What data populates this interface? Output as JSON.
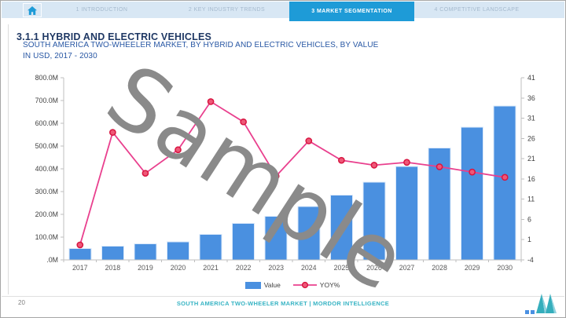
{
  "nav": {
    "active_index": 2,
    "tabs": [
      {
        "label": "1 INTRODUCTION"
      },
      {
        "label": "2 KEY INDUSTRY TRENDS"
      },
      {
        "label": "3 MARKET SEGMENTATION"
      },
      {
        "label": "4 COMPETITIVE LANDSCAPE"
      }
    ]
  },
  "heading": "3.1.1 HYBRID AND ELECTRIC VEHICLES",
  "subtitle_line1": "SOUTH AMERICA TWO-WHEELER MARKET, BY  HYBRID AND ELECTRIC VEHICLES, BY VALUE",
  "subtitle_line2": "IN USD, 2017 - 2030",
  "watermark": "Sample",
  "chart_data": {
    "type": "combo",
    "title": "SOUTH AMERICA TWO-WHEELER MARKET, BY HYBRID AND ELECTRIC VEHICLES, BY VALUE IN USD, 2017 - 2030",
    "categories": [
      "2017",
      "2018",
      "2019",
      "2020",
      "2021",
      "2022",
      "2023",
      "2024",
      "2025",
      "2026",
      "2027",
      "2028",
      "2029",
      "2030"
    ],
    "series": [
      {
        "name": "Value",
        "chart_type": "bar",
        "axis": "left",
        "unit": "USD millions",
        "values": [
          50,
          60,
          71,
          79,
          112,
          160,
          191,
          235,
          285,
          341,
          410,
          492,
          582,
          676
        ]
      },
      {
        "name": "YOY%",
        "chart_type": "line",
        "axis": "right",
        "values": [
          -0.3,
          27.5,
          17.4,
          23.2,
          35.1,
          30.1,
          16.7,
          25.4,
          20.6,
          19.4,
          20.1,
          19,
          17.7,
          16.4
        ]
      }
    ],
    "left_axis": {
      "min": 0,
      "max": 800,
      "unit": "USD millions",
      "tick_labels": [
        "800.0M",
        "700.0M",
        "600.0M",
        "500.0M",
        "400.0M",
        "300.0M",
        "200.0M",
        "100.0M",
        ".0M"
      ]
    },
    "right_axis": {
      "min": -4,
      "max": 41,
      "tick_labels": [
        "41",
        "36",
        "31",
        "26",
        "21",
        "16",
        "11",
        "6",
        "1",
        "-4"
      ]
    },
    "legend_position": "bottom",
    "gridlines": false,
    "colors": {
      "bar": "#4a90e0",
      "bar_stroke": "#d9e8fa",
      "line": "#e9408e",
      "marker_fill": "#ee5878",
      "marker_stroke": "#d81540",
      "axis": "#bfbfbf",
      "tick_text": "#3f3f3f",
      "year_text": "#595959"
    }
  },
  "footer": {
    "page_number": "20",
    "text": "SOUTH AMERICA TWO-WHEELER MARKET | MORDOR INTELLIGENCE"
  },
  "colors": {
    "brand_blue": "#1e9bd7",
    "brand_teal": "#38b4c4",
    "navy_heading": "#1f3864",
    "subtitle_blue": "#2857a4",
    "nav_background": "#d8e7f4",
    "watermark_gray": "#8a8a8a"
  }
}
